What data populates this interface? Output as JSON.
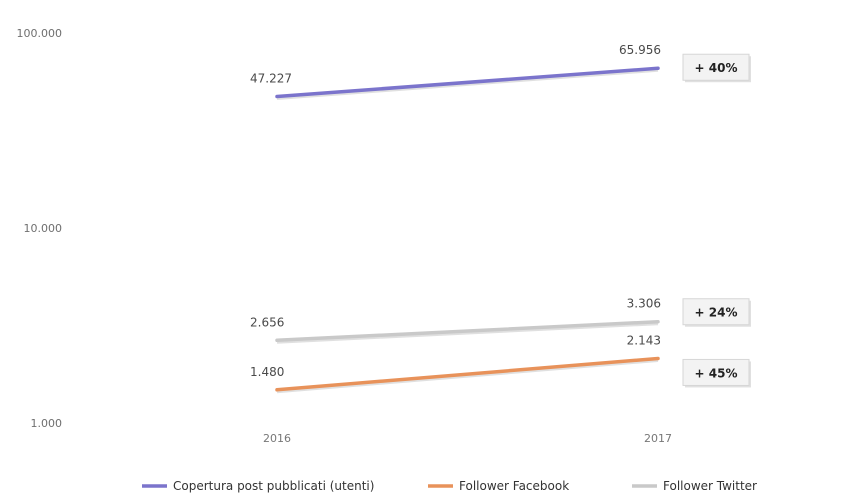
{
  "chart_data": {
    "type": "line",
    "yscale": "log",
    "ylim": [
      1000,
      100000
    ],
    "yticks": [
      "100.000",
      "10.000",
      "1.000"
    ],
    "categories": [
      "2016",
      "2017"
    ],
    "grid": false,
    "legend_position": "bottom",
    "series": [
      {
        "name": "Copertura post pubblicati (utenti)",
        "values": [
          47227,
          65956
        ],
        "labels": [
          "47.227",
          "65.956"
        ],
        "change": "+ 40%",
        "color": "#7b74cc"
      },
      {
        "name": "Follower Facebook",
        "values": [
          1480,
          2143
        ],
        "labels": [
          "1.480",
          "2.143"
        ],
        "change": "+ 45%",
        "color": "#e8925a"
      },
      {
        "name": "Follower Twitter",
        "values": [
          2656,
          3306
        ],
        "labels": [
          "2.656",
          "3.306"
        ],
        "change": "+ 24%",
        "color": "#c9c9c9"
      }
    ]
  }
}
